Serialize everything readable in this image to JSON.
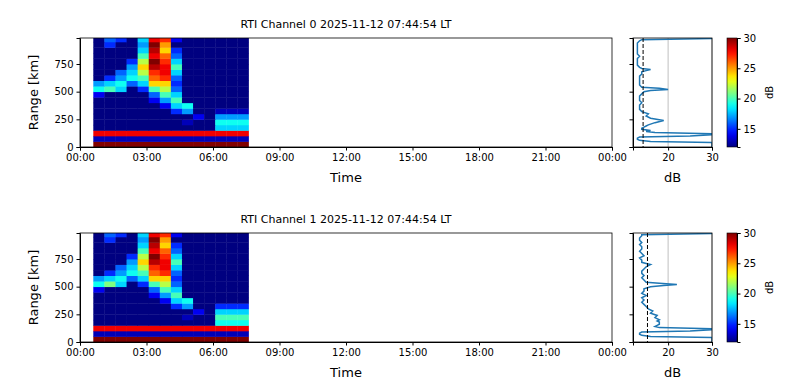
{
  "chart_data": [
    {
      "type": "heatmap",
      "title": "RTI Channel 0 2025-11-12 07:44:54 LT",
      "xlabel": "Time",
      "ylabel": "Range [km]",
      "xlim": [
        0,
        24
      ],
      "xticks": [
        {
          "value": 0,
          "label": "00:00"
        },
        {
          "value": 3,
          "label": "03:00"
        },
        {
          "value": 6,
          "label": "06:00"
        },
        {
          "value": 9,
          "label": "09:00"
        },
        {
          "value": 12,
          "label": "12:00"
        },
        {
          "value": 15,
          "label": "15:00"
        },
        {
          "value": 18,
          "label": "18:00"
        },
        {
          "value": 21,
          "label": "21:00"
        },
        {
          "value": 24,
          "label": "00:00"
        }
      ],
      "ylim": [
        0,
        985
      ],
      "yticks": [
        0,
        250,
        500,
        750
      ],
      "x_edges": [
        0.6,
        1.1,
        1.6,
        2.1,
        2.6,
        3.1,
        3.6,
        4.1,
        4.6,
        5.1,
        5.6,
        6.1,
        6.6,
        7.1,
        7.6
      ],
      "y_edges": [
        0,
        50,
        100,
        150,
        200,
        250,
        300,
        350,
        400,
        450,
        500,
        550,
        600,
        650,
        700,
        750,
        800,
        850,
        900,
        950,
        1000
      ],
      "cells": [
        [
          30,
          30,
          30,
          30,
          30,
          30,
          30,
          30,
          30,
          30,
          30,
          30,
          30,
          30
        ],
        [
          13,
          13,
          13,
          13,
          13,
          13,
          13,
          13,
          13,
          13,
          13,
          13,
          13,
          13
        ],
        [
          28,
          28,
          28,
          28,
          28,
          28,
          28,
          28,
          28,
          28,
          28,
          28,
          28,
          28
        ],
        [
          12,
          12,
          12,
          12,
          12,
          12,
          12,
          12,
          12,
          12,
          12,
          18,
          18,
          18
        ],
        [
          12,
          12,
          12,
          12,
          12,
          12,
          12,
          12,
          13,
          12,
          12,
          19,
          19,
          19
        ],
        [
          12,
          12,
          12,
          12,
          12,
          12,
          12,
          12,
          12,
          14,
          12,
          17,
          17,
          17
        ],
        [
          12,
          12,
          12,
          12,
          12,
          12,
          12,
          15,
          17,
          12,
          12,
          13,
          13,
          13
        ],
        [
          12,
          12,
          12,
          12,
          12,
          12,
          14,
          18,
          19,
          12,
          12,
          12,
          12,
          12
        ],
        [
          12,
          12,
          12,
          12,
          12,
          14,
          17,
          20,
          12,
          12,
          12,
          12,
          12,
          12
        ],
        [
          14,
          12,
          12,
          12,
          12,
          16,
          20,
          18,
          12,
          12,
          12,
          12,
          12,
          12
        ],
        [
          19,
          20,
          18,
          12,
          15,
          20,
          22,
          16,
          12,
          12,
          12,
          12,
          12,
          12
        ],
        [
          17,
          18,
          19,
          16,
          18,
          24,
          24,
          15,
          12,
          12,
          12,
          12,
          12,
          12
        ],
        [
          12,
          15,
          17,
          19,
          20,
          26,
          27,
          16,
          12,
          12,
          12,
          12,
          12,
          12
        ],
        [
          12,
          12,
          16,
          18,
          22,
          27,
          28,
          18,
          12,
          12,
          12,
          12,
          12,
          12
        ],
        [
          12,
          12,
          12,
          17,
          24,
          29,
          28,
          20,
          12,
          12,
          12,
          12,
          12,
          12
        ],
        [
          12,
          12,
          12,
          15,
          22,
          30,
          27,
          18,
          12,
          12,
          12,
          12,
          12,
          12
        ],
        [
          12,
          12,
          12,
          12,
          20,
          28,
          26,
          16,
          12,
          12,
          12,
          12,
          12,
          12
        ],
        [
          12,
          12,
          12,
          12,
          18,
          29,
          24,
          15,
          12,
          12,
          12,
          12,
          12,
          12
        ],
        [
          12,
          15,
          12,
          12,
          17,
          30,
          25,
          12,
          12,
          12,
          12,
          12,
          12,
          12
        ],
        [
          12,
          16,
          15,
          12,
          18,
          28,
          27,
          14,
          12,
          12,
          12,
          12,
          12,
          12
        ]
      ],
      "colorbar": {
        "lim": [
          12,
          30
        ],
        "ticks": [
          15,
          20,
          25,
          30
        ],
        "label": "dB"
      },
      "profile": {
        "xlabel": "dB",
        "xlim": [
          12,
          30
        ],
        "xticks": [
          20,
          30
        ],
        "grid": true,
        "color": "#1f77b4",
        "noise_level": 14.3,
        "range": [
          0,
          10,
          20,
          30,
          40,
          50,
          60,
          70,
          80,
          90,
          100,
          110,
          120,
          130,
          140,
          150,
          160,
          170,
          180,
          190,
          200,
          220,
          240,
          260,
          280,
          300,
          320,
          340,
          360,
          380,
          400,
          420,
          440,
          460,
          480,
          500,
          510,
          520,
          530,
          540,
          560,
          580,
          600,
          620,
          640,
          660,
          680,
          690,
          700,
          710,
          720,
          740,
          760,
          780,
          800,
          820,
          840,
          860,
          880,
          900,
          920,
          940,
          960,
          970,
          980,
          985
        ],
        "values": [
          30,
          30,
          30,
          30,
          30,
          16,
          13.5,
          13,
          13,
          13.5,
          25,
          30,
          30,
          17,
          15,
          16,
          14,
          14,
          14.5,
          15,
          15.5,
          17,
          19,
          16,
          15,
          15.5,
          14,
          13.5,
          13.5,
          13.5,
          14,
          13.5,
          13.5,
          13.5,
          14,
          14.5,
          16,
          20,
          18,
          14,
          13.5,
          13.5,
          13.5,
          13.5,
          13.5,
          14,
          14,
          15,
          16,
          14,
          13.5,
          13,
          13,
          13,
          13,
          13.5,
          13,
          13,
          13,
          13,
          13,
          13,
          13.5,
          14,
          30,
          30
        ]
      }
    },
    {
      "type": "heatmap",
      "title": "RTI Channel 1 2025-11-12 07:44:54 LT",
      "xlabel": "Time",
      "ylabel": "Range [km]",
      "xlim": [
        0,
        24
      ],
      "xticks": [
        {
          "value": 0,
          "label": "00:00"
        },
        {
          "value": 3,
          "label": "03:00"
        },
        {
          "value": 6,
          "label": "06:00"
        },
        {
          "value": 9,
          "label": "09:00"
        },
        {
          "value": 12,
          "label": "12:00"
        },
        {
          "value": 15,
          "label": "15:00"
        },
        {
          "value": 18,
          "label": "18:00"
        },
        {
          "value": 21,
          "label": "21:00"
        },
        {
          "value": 24,
          "label": "00:00"
        }
      ],
      "ylim": [
        0,
        985
      ],
      "yticks": [
        0,
        250,
        500,
        750
      ],
      "x_edges": [
        0.6,
        1.1,
        1.6,
        2.1,
        2.6,
        3.1,
        3.6,
        4.1,
        4.6,
        5.1,
        5.6,
        6.1,
        6.6,
        7.1,
        7.6
      ],
      "y_edges": [
        0,
        50,
        100,
        150,
        200,
        250,
        300,
        350,
        400,
        450,
        500,
        550,
        600,
        650,
        700,
        750,
        800,
        850,
        900,
        950,
        1000
      ],
      "cells": [
        [
          30,
          30,
          30,
          30,
          30,
          30,
          30,
          30,
          30,
          30,
          30,
          30,
          30,
          30
        ],
        [
          13,
          13,
          13,
          13,
          13,
          13,
          13,
          13,
          13,
          13,
          13,
          13,
          13,
          13
        ],
        [
          28,
          28,
          28,
          28,
          28,
          28,
          28,
          28,
          28,
          28,
          28,
          28,
          28,
          28
        ],
        [
          12,
          12,
          12,
          12,
          12,
          12,
          12,
          12,
          12,
          12,
          12,
          19,
          19,
          19
        ],
        [
          12,
          12,
          12,
          12,
          12,
          12,
          12,
          12,
          13,
          12,
          12,
          20,
          20,
          20
        ],
        [
          12,
          12,
          12,
          12,
          12,
          12,
          12,
          12,
          12,
          14,
          12,
          18,
          18,
          18
        ],
        [
          12,
          12,
          12,
          12,
          12,
          12,
          12,
          15,
          17,
          12,
          12,
          15,
          15,
          15
        ],
        [
          12,
          12,
          12,
          12,
          12,
          12,
          14,
          18,
          19,
          12,
          12,
          12,
          12,
          12
        ],
        [
          12,
          12,
          12,
          12,
          12,
          14,
          17,
          20,
          12,
          12,
          12,
          12,
          12,
          12
        ],
        [
          14,
          12,
          12,
          12,
          12,
          16,
          20,
          18,
          12,
          12,
          12,
          12,
          12,
          12
        ],
        [
          19,
          21,
          18,
          12,
          15,
          20,
          22,
          16,
          12,
          12,
          12,
          12,
          12,
          12
        ],
        [
          17,
          18,
          19,
          16,
          18,
          24,
          24,
          15,
          12,
          12,
          12,
          12,
          12,
          12
        ],
        [
          12,
          15,
          17,
          19,
          20,
          26,
          27,
          16,
          12,
          12,
          12,
          12,
          12,
          12
        ],
        [
          12,
          12,
          16,
          18,
          22,
          27,
          28,
          18,
          12,
          12,
          12,
          12,
          12,
          12
        ],
        [
          12,
          12,
          12,
          17,
          24,
          29,
          28,
          20,
          12,
          12,
          12,
          12,
          12,
          12
        ],
        [
          12,
          12,
          12,
          15,
          22,
          30,
          27,
          18,
          12,
          12,
          12,
          12,
          12,
          12
        ],
        [
          12,
          12,
          12,
          12,
          20,
          28,
          26,
          16,
          12,
          12,
          12,
          12,
          12,
          12
        ],
        [
          12,
          12,
          12,
          12,
          18,
          29,
          24,
          15,
          12,
          12,
          12,
          12,
          12,
          12
        ],
        [
          12,
          15,
          12,
          12,
          17,
          30,
          25,
          12,
          12,
          12,
          12,
          12,
          12,
          12
        ],
        [
          12,
          16,
          15,
          12,
          18,
          28,
          27,
          14,
          12,
          12,
          12,
          12,
          12,
          12
        ]
      ],
      "colorbar": {
        "lim": [
          12,
          30
        ],
        "ticks": [
          15,
          20,
          25,
          30
        ],
        "label": "dB"
      },
      "profile": {
        "xlabel": "dB",
        "xlim": [
          12,
          30
        ],
        "xticks": [
          20,
          30
        ],
        "grid": true,
        "color": "#1f77b4",
        "noise_level": 15.3,
        "range": [
          0,
          10,
          20,
          30,
          40,
          50,
          60,
          70,
          80,
          90,
          100,
          110,
          120,
          130,
          140,
          150,
          160,
          170,
          180,
          190,
          200,
          220,
          240,
          260,
          280,
          300,
          320,
          340,
          360,
          380,
          400,
          420,
          440,
          460,
          480,
          500,
          510,
          520,
          530,
          540,
          560,
          580,
          600,
          620,
          640,
          660,
          680,
          690,
          700,
          710,
          720,
          740,
          760,
          780,
          800,
          820,
          840,
          860,
          880,
          900,
          920,
          940,
          960,
          970,
          980,
          985
        ],
        "values": [
          30,
          30,
          30,
          30,
          30,
          16,
          14,
          13.5,
          13.5,
          14,
          25,
          30,
          30,
          18,
          17,
          17.5,
          18,
          18,
          18,
          17.5,
          18,
          17,
          17.5,
          16,
          16.5,
          15.5,
          15,
          14.5,
          14,
          14.5,
          14,
          15,
          14,
          14.5,
          14.5,
          16,
          19,
          22,
          18,
          15,
          14.5,
          14,
          14.5,
          14,
          14,
          14.5,
          15,
          15.5,
          16,
          15,
          14,
          14,
          13.5,
          14.5,
          14,
          13.5,
          14,
          14,
          13.5,
          14,
          13.5,
          13.5,
          14,
          14,
          30,
          30
        ]
      }
    }
  ]
}
